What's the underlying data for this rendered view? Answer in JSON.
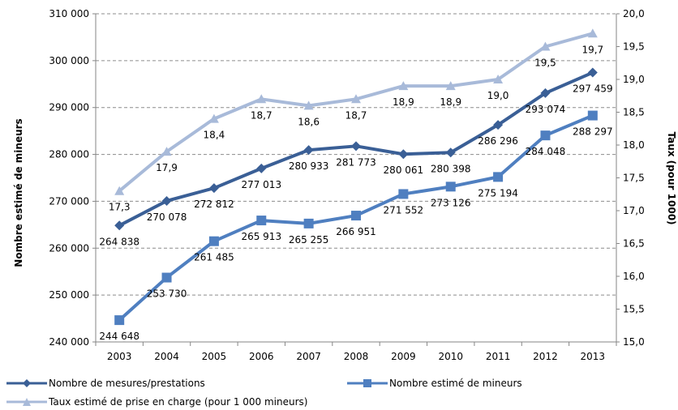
{
  "chart_data": {
    "type": "line",
    "categories": [
      "2003",
      "2004",
      "2005",
      "2006",
      "2007",
      "2008",
      "2009",
      "2010",
      "2011",
      "2012",
      "2013"
    ],
    "y_axis_left": {
      "label": "Nombre estimé de mineurs",
      "range": [
        240000,
        310000
      ],
      "ticks": [
        "240 000",
        "250 000",
        "260 000",
        "270 000",
        "280 000",
        "290 000",
        "300 000",
        "310 000"
      ]
    },
    "y_axis_right": {
      "label": "Taux (pour 1000)",
      "range": [
        15.0,
        20.0
      ],
      "ticks": [
        "15,0",
        "15,5",
        "16,0",
        "16,5",
        "17,0",
        "17,5",
        "18,0",
        "18,5",
        "19,0",
        "19,5",
        "20,0"
      ]
    },
    "grid": "horizontal dashed",
    "legend_position": "bottom",
    "series": [
      {
        "name": "Nombre de mesures/prestations",
        "axis": "left",
        "marker": "diamond",
        "color": "#3a5f96",
        "values": [
          264838,
          270078,
          272812,
          277013,
          280933,
          281773,
          280061,
          280398,
          286296,
          293074,
          297459
        ],
        "labels": [
          "264 838",
          "270 078",
          "272 812",
          "277 013",
          "280 933",
          "281 773",
          "280 061",
          "280 398",
          "286 296",
          "293 074",
          "297 459"
        ]
      },
      {
        "name": "Nombre estimé de mineurs",
        "axis": "left",
        "marker": "square",
        "color": "#4f7fc0",
        "values": [
          244648,
          253730,
          261485,
          265913,
          265255,
          266951,
          271552,
          273126,
          275194,
          284048,
          288297
        ],
        "labels": [
          "244 648",
          "253 730",
          "261 485",
          "265 913",
          "265 255",
          "266 951",
          "271 552",
          "273 126",
          "275 194",
          "284 048",
          "288 297"
        ]
      },
      {
        "name": "Taux estimé de prise en charge (pour 1 000 mineurs)",
        "axis": "right",
        "marker": "triangle",
        "color": "#a8bad9",
        "values": [
          17.3,
          17.9,
          18.4,
          18.7,
          18.6,
          18.7,
          18.9,
          18.9,
          19.0,
          19.5,
          19.7
        ],
        "labels": [
          "17,3",
          "17,9",
          "18,4",
          "18,7",
          "18,6",
          "18,7",
          "18,9",
          "18,9",
          "19,0",
          "19,5",
          "19,7"
        ]
      }
    ]
  }
}
